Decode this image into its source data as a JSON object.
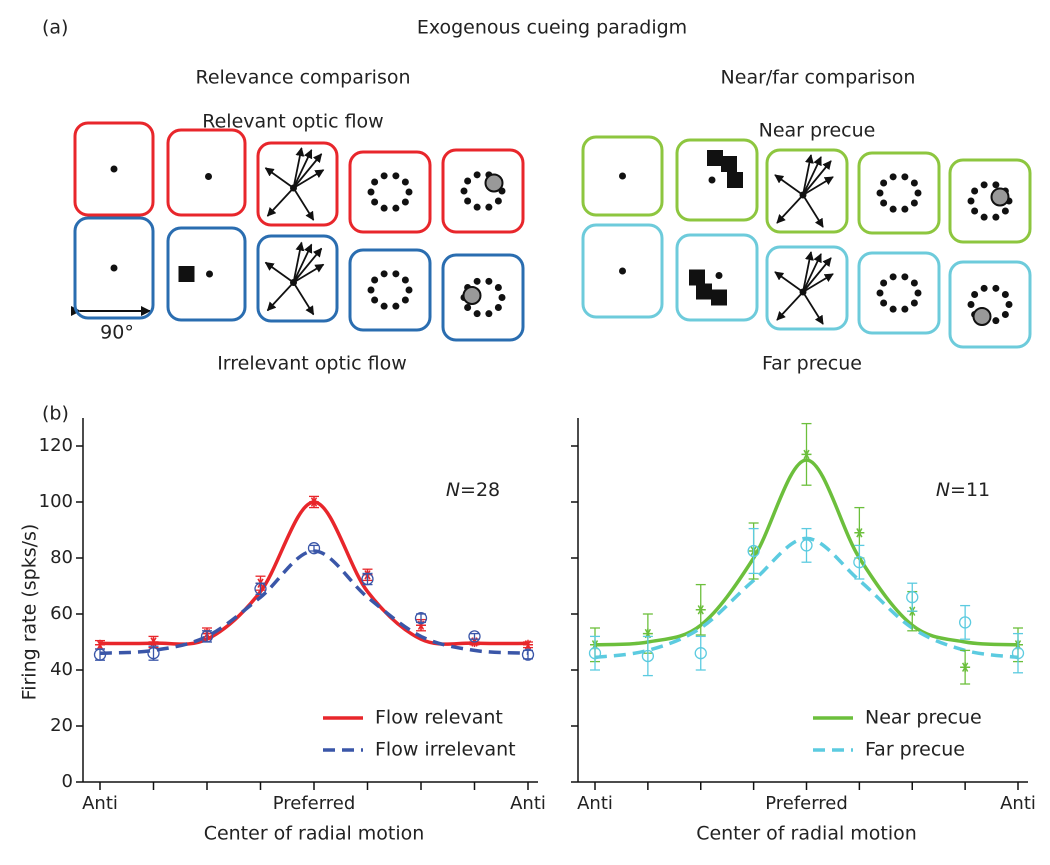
{
  "panel_a": {
    "label": "(a)",
    "title": "Exogenous cueing paradigm",
    "left": {
      "title": "Relevance comparison",
      "top_label": "Relevant optic flow",
      "bottom_label": "Irrelevant optic flow",
      "scale_label": "90°"
    },
    "right": {
      "title": "Near/far comparison",
      "top_label": "Near precue",
      "bottom_label": "Far precue"
    }
  },
  "panel_b": {
    "label": "(b)"
  },
  "chart_data": [
    {
      "type": "line",
      "categories": [
        "Anti",
        null,
        null,
        null,
        "Preferred",
        null,
        null,
        null,
        "Anti"
      ],
      "xlabel": "Center of radial motion",
      "ylabel": "Firing rate (spks/s)",
      "ylim": [
        0,
        130
      ],
      "yticks": [
        0,
        20,
        40,
        60,
        80,
        100,
        120
      ],
      "show_ytick_labels": true,
      "annotation": "N=28",
      "legend": "lower right",
      "points": [
        {
          "color": "#e8262b",
          "marker": "star",
          "values": [
            49,
            50,
            53,
            71,
            100,
            74,
            56,
            50,
            49
          ],
          "errors": [
            1.5,
            2,
            2,
            2.5,
            2,
            2,
            2,
            1,
            1
          ]
        },
        {
          "color": "#3a56a8",
          "marker": "circle",
          "values": [
            45.5,
            46,
            52,
            69,
            83.5,
            72.5,
            58.5,
            52,
            45.5
          ],
          "errors": [
            2,
            2.5,
            2,
            2,
            1,
            2,
            1.5,
            1,
            1.5
          ]
        }
      ],
      "series": [
        {
          "name": "Flow relevant",
          "color": "#e8262b",
          "dash": false,
          "values": [
            49.5,
            49.6,
            51,
            68,
            100,
            68,
            51,
            49.6,
            49.5
          ]
        },
        {
          "name": "Flow irrelevant",
          "color": "#3a56a8",
          "dash": true,
          "values": [
            46,
            47,
            52,
            66,
            82.5,
            66,
            52,
            47,
            46
          ]
        }
      ]
    },
    {
      "type": "line",
      "categories": [
        "Anti",
        null,
        null,
        null,
        "Preferred",
        null,
        null,
        null,
        "Anti"
      ],
      "xlabel": "Center of radial motion",
      "ylim": [
        0,
        130
      ],
      "yticks": [
        0,
        20,
        40,
        60,
        80,
        100,
        120
      ],
      "show_ytick_labels": false,
      "annotation": "N=11",
      "legend": "lower right",
      "points": [
        {
          "color": "#6cbf3c",
          "marker": "star",
          "values": [
            49,
            53,
            61.5,
            82.5,
            117,
            89,
            61,
            41,
            49
          ],
          "errors": [
            6,
            7,
            9,
            10,
            11,
            9,
            7,
            6,
            6
          ]
        },
        {
          "color": "#5ccbe0",
          "marker": "circle",
          "values": [
            46,
            45,
            46,
            82.5,
            84.5,
            78.5,
            66,
            57,
            46
          ],
          "errors": [
            6,
            7,
            6,
            8,
            6,
            6,
            5,
            6,
            7
          ]
        }
      ],
      "series": [
        {
          "name": "Near precue",
          "color": "#6cbf3c",
          "dash": false,
          "values": [
            49,
            50,
            56,
            80,
            115,
            80,
            56,
            50,
            49
          ]
        },
        {
          "name": "Far precue",
          "color": "#5ccbe0",
          "dash": true,
          "values": [
            44.5,
            47,
            55,
            72,
            87,
            72,
            55,
            47,
            44.5
          ]
        }
      ]
    }
  ]
}
